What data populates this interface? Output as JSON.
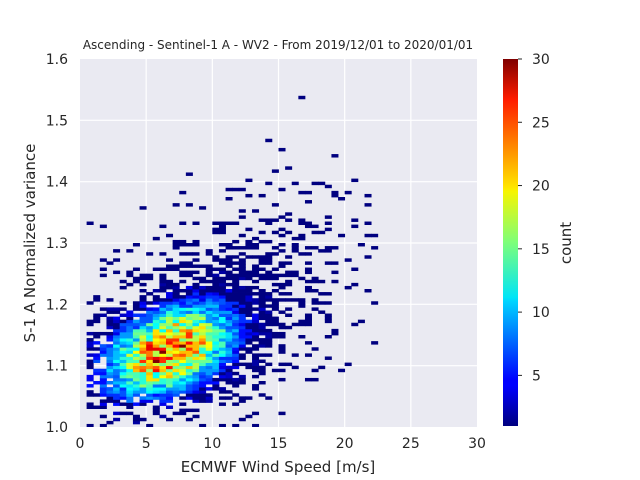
{
  "chart_data": {
    "type": "heatmap",
    "title": "Ascending - Sentinel-1 A - WV2 - From 2019/12/01 to 2020/01/01",
    "xlabel": "ECMWF Wind Speed [m/s]",
    "ylabel": "S-1 A Normalized variance",
    "xlim": [
      0,
      30
    ],
    "ylim": [
      1.0,
      1.6
    ],
    "x_ticks": [
      0,
      5,
      10,
      15,
      20,
      25,
      30
    ],
    "x_tick_labels": [
      "0",
      "5",
      "10",
      "15",
      "20",
      "25",
      "30"
    ],
    "y_ticks": [
      1.0,
      1.1,
      1.2,
      1.3,
      1.4,
      1.5,
      1.6
    ],
    "y_tick_labels": [
      "1.0",
      "1.1",
      "1.2",
      "1.3",
      "1.4",
      "1.5",
      "1.6"
    ],
    "grid": true,
    "background_color": "#eaeaf2",
    "colorbar": {
      "label": "count",
      "range": [
        1,
        30
      ],
      "ticks": [
        5,
        10,
        15,
        20,
        25,
        30
      ],
      "tick_labels": [
        "5",
        "10",
        "15",
        "20",
        "25",
        "30"
      ],
      "colormap": "jet"
    },
    "bins": {
      "x_bin_width": 0.5,
      "y_bin_width": 0.005
    },
    "density_model": {
      "peak": {
        "x": 6.8,
        "y": 1.115,
        "count": 30
      },
      "description_values": {
        "core_x_range": [
          3,
          11
        ],
        "core_y_range": [
          1.06,
          1.2
        ],
        "sparse_x_range": [
          0,
          22.5
        ],
        "sparse_y_range": [
          1.0,
          1.55
        ]
      }
    }
  }
}
